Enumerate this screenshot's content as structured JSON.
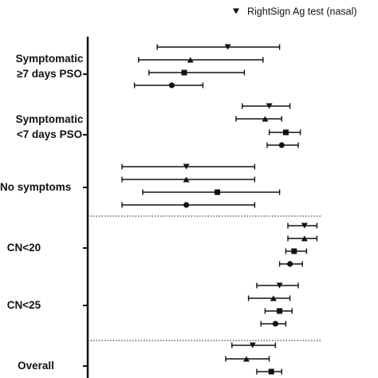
{
  "chart_data": {
    "type": "forest",
    "legend": {
      "placement": "top-right",
      "entries": [
        {
          "label": "RightSign Ag test (nasal)",
          "marker": "triangle-down"
        }
      ]
    },
    "groups": [
      {
        "label_lines": [
          "Symptomatic",
          "≥7 days PSO"
        ],
        "rows": [
          {
            "marker": "triangle-down",
            "lower": 0.22,
            "estimate": 0.56,
            "upper": 0.81
          },
          {
            "marker": "triangle-up",
            "lower": 0.13,
            "estimate": 0.38,
            "upper": 0.73
          },
          {
            "marker": "square",
            "lower": 0.18,
            "estimate": 0.35,
            "upper": 0.64
          },
          {
            "marker": "circle",
            "lower": 0.11,
            "estimate": 0.29,
            "upper": 0.44
          }
        ]
      },
      {
        "label_lines": [
          "Symptomatic",
          "<7 days PSO"
        ],
        "rows": [
          {
            "marker": "triangle-down",
            "lower": 0.63,
            "estimate": 0.76,
            "upper": 0.86
          },
          {
            "marker": "triangle-up",
            "lower": 0.6,
            "estimate": 0.74,
            "upper": 0.82
          },
          {
            "marker": "square",
            "lower": 0.76,
            "estimate": 0.84,
            "upper": 0.91
          },
          {
            "marker": "circle",
            "lower": 0.75,
            "estimate": 0.82,
            "upper": 0.9
          }
        ]
      },
      {
        "label_lines": [
          "No symptoms"
        ],
        "rows": [
          {
            "marker": "triangle-down",
            "lower": 0.05,
            "estimate": 0.36,
            "upper": 0.69
          },
          {
            "marker": "triangle-up",
            "lower": 0.05,
            "estimate": 0.36,
            "upper": 0.69
          },
          {
            "marker": "square",
            "lower": 0.15,
            "estimate": 0.51,
            "upper": 0.81
          },
          {
            "marker": "circle",
            "lower": 0.05,
            "estimate": 0.36,
            "upper": 0.69
          }
        ]
      },
      {
        "label_lines": [
          "CN<20"
        ],
        "rows": [
          {
            "marker": "triangle-down",
            "lower": 0.85,
            "estimate": 0.93,
            "upper": 0.99
          },
          {
            "marker": "triangle-up",
            "lower": 0.85,
            "estimate": 0.93,
            "upper": 0.99
          },
          {
            "marker": "square",
            "lower": 0.84,
            "estimate": 0.88,
            "upper": 0.94
          },
          {
            "marker": "circle",
            "lower": 0.81,
            "estimate": 0.86,
            "upper": 0.92
          }
        ]
      },
      {
        "label_lines": [
          "CN<25"
        ],
        "rows": [
          {
            "marker": "triangle-down",
            "lower": 0.7,
            "estimate": 0.81,
            "upper": 0.9
          },
          {
            "marker": "triangle-up",
            "lower": 0.66,
            "estimate": 0.78,
            "upper": 0.86
          },
          {
            "marker": "square",
            "lower": 0.74,
            "estimate": 0.81,
            "upper": 0.87
          },
          {
            "marker": "circle",
            "lower": 0.72,
            "estimate": 0.79,
            "upper": 0.84
          }
        ]
      },
      {
        "label_lines": [
          "Overall"
        ],
        "rows": [
          {
            "marker": "triangle-down",
            "lower": 0.58,
            "estimate": 0.68,
            "upper": 0.79
          },
          {
            "marker": "triangle-up",
            "lower": 0.55,
            "estimate": 0.65,
            "upper": 0.76
          },
          {
            "marker": "square",
            "lower": 0.7,
            "estimate": 0.77,
            "upper": 0.82
          }
        ]
      }
    ],
    "separators": "dotted lines between the symptom groups and the CN groups, and before Overall",
    "grid": false
  }
}
